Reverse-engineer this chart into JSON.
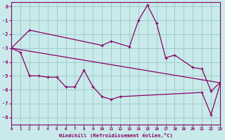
{
  "xlabel": "Windchill (Refroidissement éolien,°C)",
  "background_color": "#c8eaea",
  "grid_color": "#a0cccc",
  "line_color": "#880066",
  "xlim": [
    0,
    23
  ],
  "ylim": [
    -8.5,
    0.3
  ],
  "yticks": [
    0,
    -1,
    -2,
    -3,
    -4,
    -5,
    -6,
    -7,
    -8
  ],
  "xticks": [
    0,
    1,
    2,
    3,
    4,
    5,
    6,
    7,
    8,
    9,
    10,
    11,
    12,
    13,
    14,
    15,
    16,
    17,
    18,
    19,
    20,
    21,
    22,
    23
  ],
  "line1_x": [
    0,
    2,
    10,
    11,
    13,
    14,
    15,
    16,
    17,
    18,
    20,
    21,
    22,
    23
  ],
  "line1_y": [
    -3.0,
    -1.7,
    -2.8,
    -2.5,
    -2.9,
    -1.0,
    0.1,
    -1.2,
    -3.7,
    -3.5,
    -4.4,
    -4.5,
    -6.1,
    -5.5
  ],
  "line2_x": [
    0,
    1,
    2,
    3,
    4,
    5,
    6,
    7,
    8,
    9,
    10,
    11,
    12,
    21,
    22,
    23
  ],
  "line2_y": [
    -3.0,
    -3.3,
    -5.0,
    -5.0,
    -5.1,
    -5.1,
    -5.8,
    -5.8,
    -4.6,
    -5.8,
    -6.5,
    -6.7,
    -6.5,
    -6.2,
    -7.8,
    -5.6
  ],
  "line3_x": [
    0,
    23
  ],
  "line3_y": [
    -3.0,
    -5.5
  ]
}
